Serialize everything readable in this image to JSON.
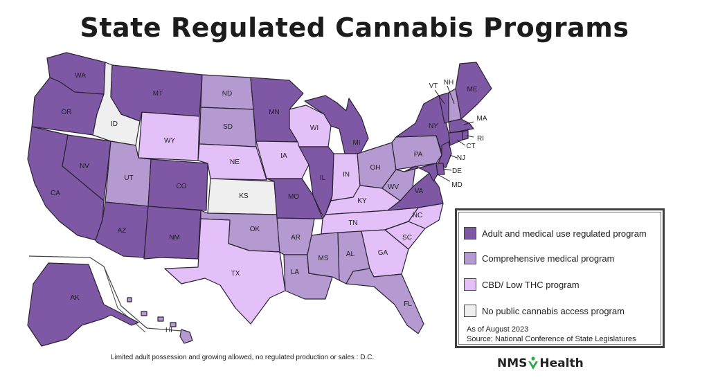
{
  "title": "State Regulated Cannabis Programs",
  "colors": {
    "adult_medical": "#7e58a4",
    "comprehensive_medical": "#b49ad0",
    "cbd_low_thc": "#e3c0f7",
    "no_program": "#efefef",
    "border": "#2b2233"
  },
  "legend": {
    "items": [
      {
        "label": "Adult and medical use regulated program",
        "category": "adult_medical"
      },
      {
        "label": "Comprehensive medical program",
        "category": "comprehensive_medical"
      },
      {
        "label": "CBD/ Low THC program",
        "category": "cbd_low_thc"
      },
      {
        "label": "No public cannabis access program",
        "category": "no_program"
      }
    ],
    "as_of": "As of August 2023",
    "source": "Source:  National Conference of State Legislatures"
  },
  "footnote": "Limited adult possession and growing allowed, no regulated production or sales : D.C.",
  "logo": {
    "part1": "NMS",
    "part2": "Health"
  },
  "states": [
    {
      "abbr": "WA",
      "category": "adult_medical"
    },
    {
      "abbr": "OR",
      "category": "adult_medical"
    },
    {
      "abbr": "CA",
      "category": "adult_medical"
    },
    {
      "abbr": "NV",
      "category": "adult_medical"
    },
    {
      "abbr": "ID",
      "category": "no_program"
    },
    {
      "abbr": "MT",
      "category": "adult_medical"
    },
    {
      "abbr": "WY",
      "category": "cbd_low_thc"
    },
    {
      "abbr": "UT",
      "category": "comprehensive_medical"
    },
    {
      "abbr": "CO",
      "category": "adult_medical"
    },
    {
      "abbr": "AZ",
      "category": "adult_medical"
    },
    {
      "abbr": "NM",
      "category": "adult_medical"
    },
    {
      "abbr": "ND",
      "category": "comprehensive_medical"
    },
    {
      "abbr": "SD",
      "category": "comprehensive_medical"
    },
    {
      "abbr": "NE",
      "category": "cbd_low_thc"
    },
    {
      "abbr": "KS",
      "category": "no_program"
    },
    {
      "abbr": "OK",
      "category": "comprehensive_medical"
    },
    {
      "abbr": "TX",
      "category": "cbd_low_thc"
    },
    {
      "abbr": "MN",
      "category": "adult_medical"
    },
    {
      "abbr": "IA",
      "category": "cbd_low_thc"
    },
    {
      "abbr": "MO",
      "category": "adult_medical"
    },
    {
      "abbr": "AR",
      "category": "comprehensive_medical"
    },
    {
      "abbr": "LA",
      "category": "comprehensive_medical"
    },
    {
      "abbr": "WI",
      "category": "cbd_low_thc"
    },
    {
      "abbr": "IL",
      "category": "adult_medical"
    },
    {
      "abbr": "MI",
      "category": "adult_medical"
    },
    {
      "abbr": "IN",
      "category": "cbd_low_thc"
    },
    {
      "abbr": "OH",
      "category": "comprehensive_medical"
    },
    {
      "abbr": "KY",
      "category": "cbd_low_thc"
    },
    {
      "abbr": "TN",
      "category": "cbd_low_thc"
    },
    {
      "abbr": "MS",
      "category": "comprehensive_medical"
    },
    {
      "abbr": "AL",
      "category": "comprehensive_medical"
    },
    {
      "abbr": "GA",
      "category": "cbd_low_thc"
    },
    {
      "abbr": "FL",
      "category": "comprehensive_medical"
    },
    {
      "abbr": "SC",
      "category": "cbd_low_thc"
    },
    {
      "abbr": "NC",
      "category": "cbd_low_thc"
    },
    {
      "abbr": "VA",
      "category": "adult_medical"
    },
    {
      "abbr": "WV",
      "category": "comprehensive_medical"
    },
    {
      "abbr": "PA",
      "category": "comprehensive_medical"
    },
    {
      "abbr": "NY",
      "category": "adult_medical"
    },
    {
      "abbr": "VT",
      "category": "adult_medical"
    },
    {
      "abbr": "NH",
      "category": "comprehensive_medical"
    },
    {
      "abbr": "ME",
      "category": "adult_medical"
    },
    {
      "abbr": "MA",
      "category": "adult_medical"
    },
    {
      "abbr": "RI",
      "category": "adult_medical"
    },
    {
      "abbr": "CT",
      "category": "adult_medical"
    },
    {
      "abbr": "NJ",
      "category": "adult_medical"
    },
    {
      "abbr": "DE",
      "category": "adult_medical"
    },
    {
      "abbr": "MD",
      "category": "adult_medical"
    },
    {
      "abbr": "AK",
      "category": "adult_medical"
    },
    {
      "abbr": "HI",
      "category": "comprehensive_medical"
    }
  ]
}
